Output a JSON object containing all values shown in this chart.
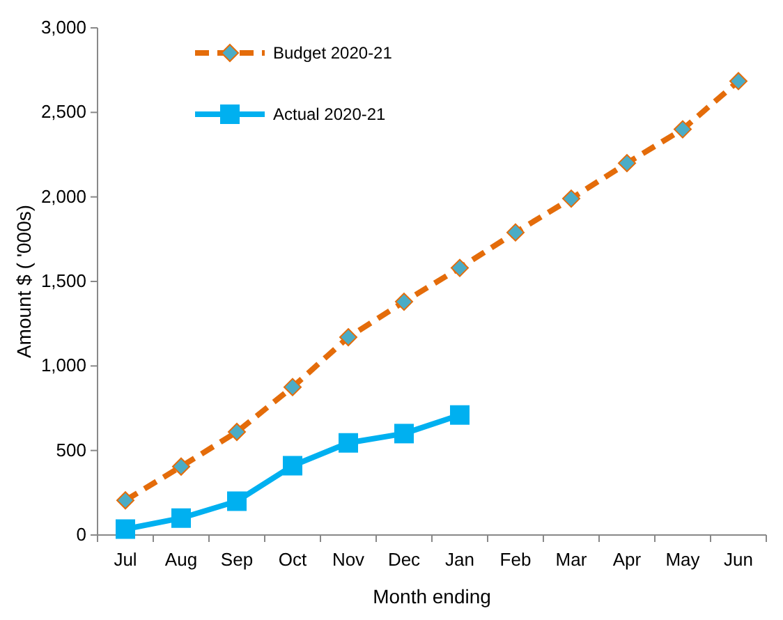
{
  "chart_data": {
    "type": "line",
    "xlabel": "Month ending",
    "ylabel": "Amount $ ( '000s)",
    "categories": [
      "Jul",
      "Aug",
      "Sep",
      "Oct",
      "Nov",
      "Dec",
      "Jan",
      "Feb",
      "Mar",
      "Apr",
      "May",
      "Jun"
    ],
    "series": [
      {
        "name": "Budget 2020-21",
        "color": "#e46c0a",
        "line_style": "dashed",
        "marker": "diamond",
        "values": [
          205,
          405,
          610,
          875,
          1170,
          1380,
          1580,
          1790,
          1990,
          2200,
          2400,
          2685
        ]
      },
      {
        "name": "Actual 2020-21",
        "color": "#00b0f0",
        "line_style": "solid",
        "marker": "square",
        "values": [
          35,
          100,
          200,
          410,
          545,
          600,
          710,
          null,
          null,
          null,
          null,
          null
        ]
      }
    ],
    "ylim": [
      0,
      3000
    ],
    "yticks": [
      0,
      {
        "value": 500,
        "label": "500"
      },
      {
        "value": 1000,
        "label": "1,000"
      },
      {
        "value": 1500,
        "label": "1,500"
      },
      {
        "value": 2000,
        "label": "2,000"
      },
      {
        "value": 2500,
        "label": "2,500"
      },
      {
        "value": 3000,
        "label": "3,000"
      }
    ],
    "grid": false,
    "legend": "top left"
  }
}
